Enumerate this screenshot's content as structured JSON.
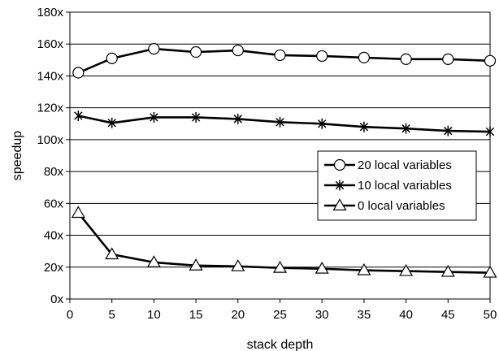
{
  "chart_data": {
    "type": "line",
    "title": "",
    "xlabel": "stack depth",
    "ylabel": "speedup",
    "x": [
      1,
      5,
      10,
      15,
      20,
      25,
      30,
      35,
      40,
      45,
      50
    ],
    "x_ticks": [
      "0",
      "5",
      "10",
      "15",
      "20",
      "25",
      "30",
      "35",
      "40",
      "45",
      "50"
    ],
    "xlim": [
      0,
      50
    ],
    "ylim": [
      0,
      180
    ],
    "y_ticks": [
      "0x",
      "20x",
      "40x",
      "60x",
      "80x",
      "100x",
      "120x",
      "140x",
      "160x",
      "180x"
    ],
    "grid": "horizontal",
    "legend_position": "right-middle",
    "series": [
      {
        "name": "20 local variables",
        "marker": "circle",
        "values": [
          142,
          151,
          157,
          155,
          156,
          153,
          152.5,
          151.5,
          150.5,
          150.5,
          149.5
        ]
      },
      {
        "name": "10 local variables",
        "marker": "asterisk",
        "values": [
          115,
          110.5,
          114,
          114,
          113,
          111,
          110,
          108,
          107,
          105.5,
          105
        ]
      },
      {
        "name": "0 local variables",
        "marker": "triangle",
        "values": [
          54,
          28,
          23,
          21,
          20.5,
          19.5,
          19,
          18,
          17.5,
          17,
          16.5
        ]
      }
    ]
  }
}
